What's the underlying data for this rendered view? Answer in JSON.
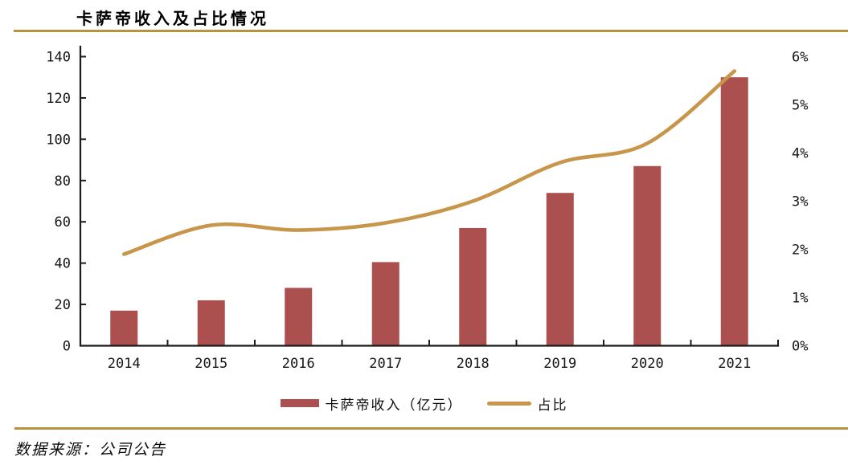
{
  "header": {
    "title": "卡萨帝收入及占比情况"
  },
  "chart_data": {
    "type": "combo-bar-line",
    "categories": [
      "2014",
      "2015",
      "2016",
      "2017",
      "2018",
      "2019",
      "2020",
      "2021"
    ],
    "series": [
      {
        "name": "卡萨帝收入（亿元）",
        "type": "bar",
        "axis": "left",
        "color": "#AC4F4F",
        "values": [
          17,
          22,
          28,
          40.5,
          57,
          74,
          87,
          130
        ]
      },
      {
        "name": "占比",
        "type": "line",
        "axis": "right",
        "color": "#C8964A",
        "unit": "%",
        "values": [
          1.9,
          2.5,
          2.4,
          2.55,
          3.0,
          3.8,
          4.2,
          5.7
        ]
      }
    ],
    "left_axis": {
      "min": 0,
      "max": 140,
      "step": 20,
      "tick_labels": [
        "0",
        "20",
        "40",
        "60",
        "80",
        "100",
        "120",
        "140"
      ]
    },
    "right_axis": {
      "min": 0,
      "max": 6,
      "step": 1,
      "unit": "%",
      "tick_labels": [
        "0%",
        "1%",
        "2%",
        "3%",
        "4%",
        "5%",
        "6%"
      ]
    },
    "grid": false,
    "legend_position": "bottom"
  },
  "footer": {
    "source": "数据来源：公司公告"
  },
  "theme": {
    "bar_color": "#AC4F4F",
    "line_color": "#C8964A",
    "rule_color": "#B7923F",
    "axis_color": "#1C1C1C",
    "text_color": "#151515",
    "background": "#FFFFFF"
  }
}
